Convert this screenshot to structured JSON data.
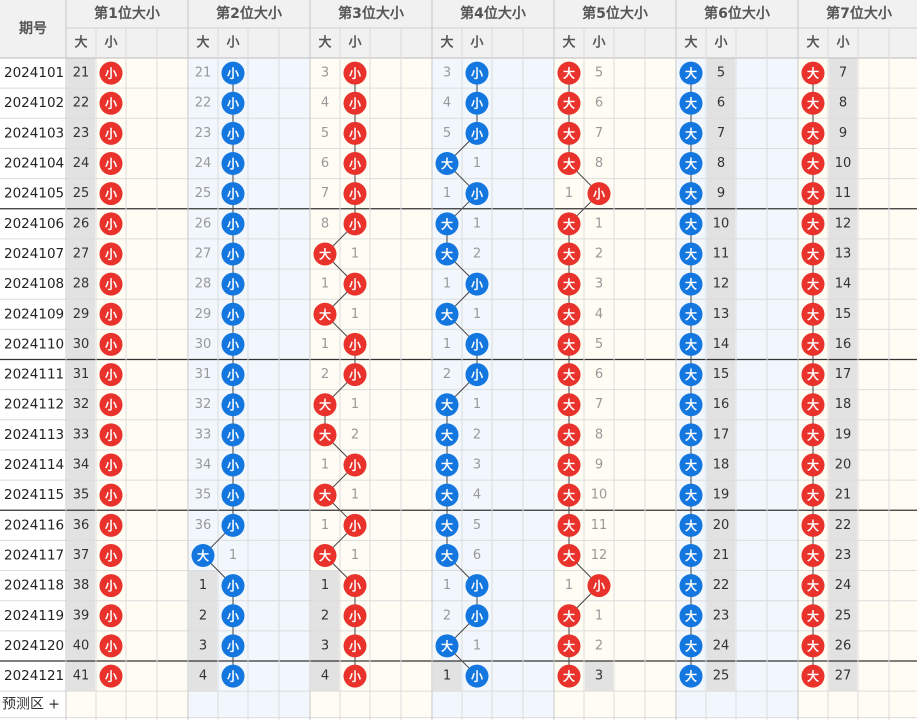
{
  "header": {
    "period_label": "期号",
    "columns": [
      "第1位大小",
      "第2位大小",
      "第3位大小",
      "第4位大小",
      "第5位大小",
      "第6位大小",
      "第7位大小"
    ],
    "big_label": "大",
    "small_label": "小"
  },
  "footer": {
    "predict_label": "预测区",
    "plus_label": "+"
  },
  "colors": {
    "red": "#e8322b",
    "blue": "#1477e0",
    "pale_blue": "#f2f7fd",
    "pale_cream": "#fefcf3",
    "grey": "#e2e2e2"
  },
  "rows": [
    {
      "period": "2024101",
      "cells": [
        [
          "21",
          "S"
        ],
        [
          "21",
          "S"
        ],
        [
          "3",
          "S"
        ],
        [
          "3",
          "S"
        ],
        [
          "B",
          "5"
        ],
        [
          "B",
          "5"
        ],
        [
          "B",
          "7"
        ]
      ]
    },
    {
      "period": "2024102",
      "cells": [
        [
          "22",
          "S"
        ],
        [
          "22",
          "S"
        ],
        [
          "4",
          "S"
        ],
        [
          "4",
          "S"
        ],
        [
          "B",
          "6"
        ],
        [
          "B",
          "6"
        ],
        [
          "B",
          "8"
        ]
      ]
    },
    {
      "period": "2024103",
      "cells": [
        [
          "23",
          "S"
        ],
        [
          "23",
          "S"
        ],
        [
          "5",
          "S"
        ],
        [
          "5",
          "S"
        ],
        [
          "B",
          "7"
        ],
        [
          "B",
          "7"
        ],
        [
          "B",
          "9"
        ]
      ]
    },
    {
      "period": "2024104",
      "cells": [
        [
          "24",
          "S"
        ],
        [
          "24",
          "S"
        ],
        [
          "6",
          "S"
        ],
        [
          "B",
          "1"
        ],
        [
          "B",
          "8"
        ],
        [
          "B",
          "8"
        ],
        [
          "B",
          "10"
        ]
      ]
    },
    {
      "period": "2024105",
      "cells": [
        [
          "25",
          "S"
        ],
        [
          "25",
          "S"
        ],
        [
          "7",
          "S"
        ],
        [
          "1",
          "S"
        ],
        [
          "1",
          "S"
        ],
        [
          "B",
          "9"
        ],
        [
          "B",
          "11"
        ]
      ]
    },
    {
      "period": "2024106",
      "cells": [
        [
          "26",
          "S"
        ],
        [
          "26",
          "S"
        ],
        [
          "8",
          "S"
        ],
        [
          "B",
          "1"
        ],
        [
          "B",
          "1"
        ],
        [
          "B",
          "10"
        ],
        [
          "B",
          "12"
        ]
      ]
    },
    {
      "period": "2024107",
      "cells": [
        [
          "27",
          "S"
        ],
        [
          "27",
          "S"
        ],
        [
          "B",
          "1"
        ],
        [
          "B",
          "2"
        ],
        [
          "B",
          "2"
        ],
        [
          "B",
          "11"
        ],
        [
          "B",
          "13"
        ]
      ]
    },
    {
      "period": "2024108",
      "cells": [
        [
          "28",
          "S"
        ],
        [
          "28",
          "S"
        ],
        [
          "1",
          "S"
        ],
        [
          "1",
          "S"
        ],
        [
          "B",
          "3"
        ],
        [
          "B",
          "12"
        ],
        [
          "B",
          "14"
        ]
      ]
    },
    {
      "period": "2024109",
      "cells": [
        [
          "29",
          "S"
        ],
        [
          "29",
          "S"
        ],
        [
          "B",
          "1"
        ],
        [
          "B",
          "1"
        ],
        [
          "B",
          "4"
        ],
        [
          "B",
          "13"
        ],
        [
          "B",
          "15"
        ]
      ]
    },
    {
      "period": "2024110",
      "cells": [
        [
          "30",
          "S"
        ],
        [
          "30",
          "S"
        ],
        [
          "1",
          "S"
        ],
        [
          "1",
          "S"
        ],
        [
          "B",
          "5"
        ],
        [
          "B",
          "14"
        ],
        [
          "B",
          "16"
        ]
      ]
    },
    {
      "period": "2024111",
      "cells": [
        [
          "31",
          "S"
        ],
        [
          "31",
          "S"
        ],
        [
          "2",
          "S"
        ],
        [
          "2",
          "S"
        ],
        [
          "B",
          "6"
        ],
        [
          "B",
          "15"
        ],
        [
          "B",
          "17"
        ]
      ]
    },
    {
      "period": "2024112",
      "cells": [
        [
          "32",
          "S"
        ],
        [
          "32",
          "S"
        ],
        [
          "B",
          "1"
        ],
        [
          "B",
          "1"
        ],
        [
          "B",
          "7"
        ],
        [
          "B",
          "16"
        ],
        [
          "B",
          "18"
        ]
      ]
    },
    {
      "period": "2024113",
      "cells": [
        [
          "33",
          "S"
        ],
        [
          "33",
          "S"
        ],
        [
          "B",
          "2"
        ],
        [
          "B",
          "2"
        ],
        [
          "B",
          "8"
        ],
        [
          "B",
          "17"
        ],
        [
          "B",
          "19"
        ]
      ]
    },
    {
      "period": "2024114",
      "cells": [
        [
          "34",
          "S"
        ],
        [
          "34",
          "S"
        ],
        [
          "1",
          "S"
        ],
        [
          "B",
          "3"
        ],
        [
          "B",
          "9"
        ],
        [
          "B",
          "18"
        ],
        [
          "B",
          "20"
        ]
      ]
    },
    {
      "period": "2024115",
      "cells": [
        [
          "35",
          "S"
        ],
        [
          "35",
          "S"
        ],
        [
          "B",
          "1"
        ],
        [
          "B",
          "4"
        ],
        [
          "B",
          "10"
        ],
        [
          "B",
          "19"
        ],
        [
          "B",
          "21"
        ]
      ]
    },
    {
      "period": "2024116",
      "cells": [
        [
          "36",
          "S"
        ],
        [
          "36",
          "S"
        ],
        [
          "1",
          "S"
        ],
        [
          "B",
          "5"
        ],
        [
          "B",
          "11"
        ],
        [
          "B",
          "20"
        ],
        [
          "B",
          "22"
        ]
      ]
    },
    {
      "period": "2024117",
      "cells": [
        [
          "37",
          "S"
        ],
        [
          "B",
          "1"
        ],
        [
          "B",
          "1"
        ],
        [
          "B",
          "6"
        ],
        [
          "B",
          "12"
        ],
        [
          "B",
          "21"
        ],
        [
          "B",
          "23"
        ]
      ]
    },
    {
      "period": "2024118",
      "cells": [
        [
          "38",
          "S"
        ],
        [
          "1",
          "S"
        ],
        [
          "1",
          "S"
        ],
        [
          "1",
          "S"
        ],
        [
          "1",
          "S"
        ],
        [
          "B",
          "22"
        ],
        [
          "B",
          "24"
        ]
      ]
    },
    {
      "period": "2024119",
      "cells": [
        [
          "39",
          "S"
        ],
        [
          "2",
          "S"
        ],
        [
          "2",
          "S"
        ],
        [
          "2",
          "S"
        ],
        [
          "B",
          "1"
        ],
        [
          "B",
          "23"
        ],
        [
          "B",
          "25"
        ]
      ]
    },
    {
      "period": "2024120",
      "cells": [
        [
          "40",
          "S"
        ],
        [
          "3",
          "S"
        ],
        [
          "3",
          "S"
        ],
        [
          "B",
          "1"
        ],
        [
          "B",
          "2"
        ],
        [
          "B",
          "24"
        ],
        [
          "B",
          "26"
        ]
      ]
    },
    {
      "period": "2024121",
      "cells": [
        [
          "41",
          "S"
        ],
        [
          "4",
          "S"
        ],
        [
          "4",
          "S"
        ],
        [
          "1",
          "S"
        ],
        [
          "B",
          "3"
        ],
        [
          "B",
          "25"
        ],
        [
          "B",
          "27"
        ]
      ]
    }
  ]
}
